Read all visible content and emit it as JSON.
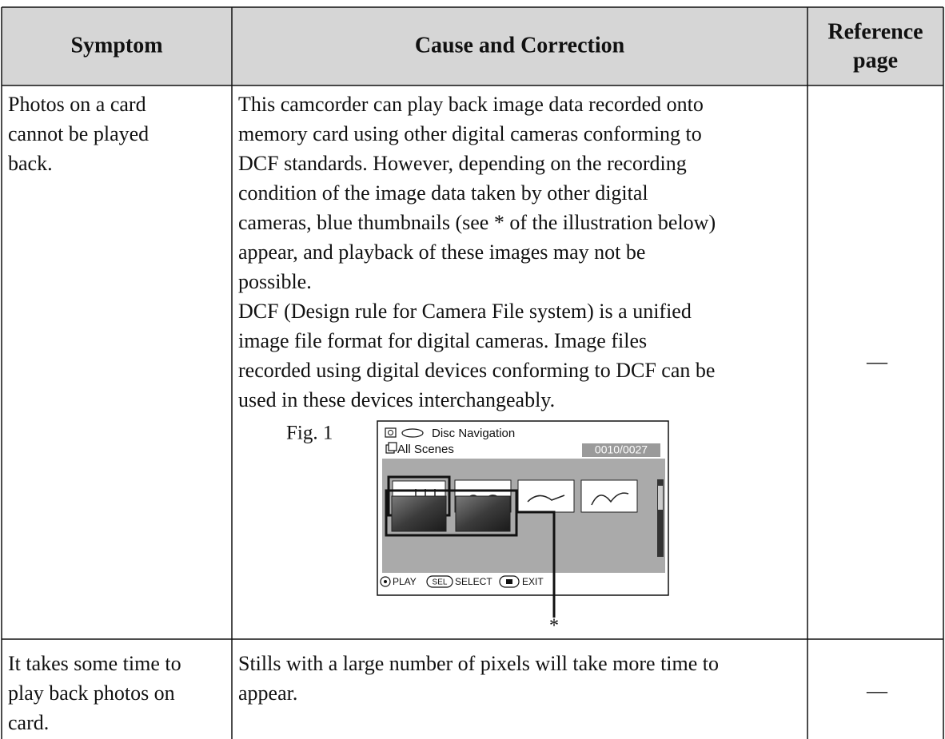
{
  "table": {
    "header": {
      "symptom": "Symptom",
      "cause": "Cause and Correction",
      "reference": [
        "Reference",
        "page"
      ]
    },
    "rows": [
      {
        "symptom": [
          "Photos on a card",
          "cannot be played",
          "back."
        ],
        "cause": [
          "This camcorder can play back image data recorded onto",
          "memory card using other digital cameras conforming to",
          "DCF standards. However, depending on the recording",
          "condition of the image data taken by other digital",
          "cameras, blue thumbnails (see * of the illustration below)",
          "appear, and playback of these images may not be",
          "possible.",
          "DCF (Design rule for Camera File system) is a unified",
          "image file format for digital cameras. Image files",
          "recorded using digital devices conforming to DCF can be",
          "used in these devices interchangeably."
        ],
        "reference": "—"
      },
      {
        "symptom": [
          "It takes some time to",
          "play back photos on",
          "card."
        ],
        "cause": [
          "Stills with a large number of pixels will take more time to",
          "appear."
        ],
        "reference": "—"
      }
    ]
  },
  "figure": {
    "label": "Fig. 1",
    "screen_title": "Disc Navigation",
    "scene_label": "All Scenes",
    "counter": "0010/0027",
    "play": "PLAY",
    "sel_icon": "SEL",
    "select": "SELECT",
    "exit": "EXIT",
    "marker": "*"
  }
}
